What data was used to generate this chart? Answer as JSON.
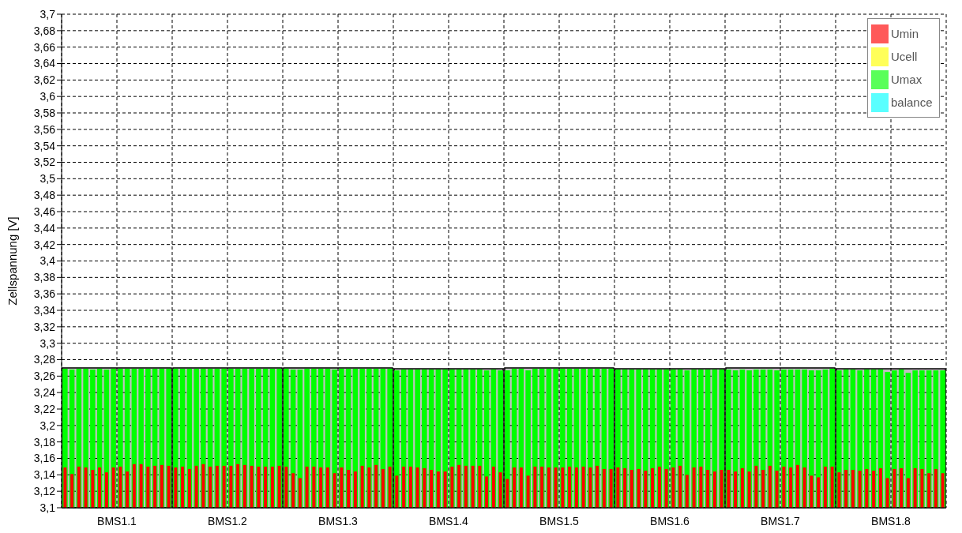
{
  "chart_data": {
    "type": "bar",
    "ylabel": "Zellspannung [V]",
    "categories": [
      null,
      null,
      null,
      null,
      null,
      null,
      null,
      "BMS1.1",
      null,
      null,
      null,
      null,
      null,
      null,
      null,
      null,
      null,
      null,
      null,
      null,
      null,
      null,
      null,
      "BMS1.2",
      null,
      null,
      null,
      null,
      null,
      null,
      null,
      null,
      null,
      null,
      null,
      null,
      null,
      null,
      null,
      "BMS1.3",
      null,
      null,
      null,
      null,
      null,
      null,
      null,
      null,
      null,
      null,
      null,
      null,
      null,
      null,
      null,
      "BMS1.4",
      null,
      null,
      null,
      null,
      null,
      null,
      null,
      null,
      null,
      null,
      null,
      null,
      null,
      null,
      null,
      "BMS1.5",
      null,
      null,
      null,
      null,
      null,
      null,
      null,
      null,
      null,
      null,
      null,
      null,
      null,
      null,
      null,
      "BMS1.6",
      null,
      null,
      null,
      null,
      null,
      null,
      null,
      null,
      null,
      null,
      null,
      null,
      null,
      null,
      null,
      "BMS1.7",
      null,
      null,
      null,
      null,
      null,
      null,
      null,
      null,
      null,
      null,
      null,
      null,
      null,
      null,
      null,
      "BMS1.8",
      null,
      null,
      null,
      null,
      null,
      null,
      null,
      null
    ],
    "series": [
      {
        "name": "Umin",
        "color": "#ff0000",
        "values": [
          3.149,
          3.141,
          3.15,
          3.149,
          3.146,
          3.149,
          3.143,
          3.149,
          3.15,
          3.144,
          3.153,
          3.153,
          3.15,
          3.151,
          3.152,
          3.151,
          3.149,
          3.15,
          3.147,
          3.151,
          3.153,
          3.15,
          3.151,
          3.151,
          3.151,
          3.153,
          3.152,
          3.151,
          3.15,
          3.15,
          3.15,
          3.151,
          3.15,
          3.142,
          3.136,
          3.15,
          3.15,
          3.149,
          3.149,
          3.142,
          3.149,
          3.146,
          3.144,
          3.151,
          3.149,
          3.152,
          3.147,
          3.15,
          3.139,
          3.15,
          3.15,
          3.149,
          3.148,
          3.146,
          3.144,
          3.144,
          3.15,
          3.152,
          3.151,
          3.151,
          3.151,
          3.138,
          3.15,
          3.143,
          3.135,
          3.149,
          3.149,
          3.139,
          3.15,
          3.15,
          3.149,
          3.149,
          3.149,
          3.15,
          3.149,
          3.15,
          3.149,
          3.151,
          3.147,
          3.147,
          3.149,
          3.148,
          3.146,
          3.147,
          3.145,
          3.148,
          3.15,
          3.147,
          3.149,
          3.151,
          3.14,
          3.149,
          3.15,
          3.146,
          3.144,
          3.146,
          3.146,
          3.144,
          3.148,
          3.144,
          3.151,
          3.146,
          3.151,
          3.145,
          3.15,
          3.149,
          3.152,
          3.149,
          3.139,
          3.137,
          3.15,
          3.15,
          3.143,
          3.146,
          3.146,
          3.145,
          3.147,
          3.145,
          3.148,
          3.136,
          3.147,
          3.148,
          3.136,
          3.148,
          3.147,
          3.142,
          3.147,
          3.142
        ]
      },
      {
        "name": "Ucell",
        "color": "#ffff00",
        "values": [
          null,
          null,
          null,
          null,
          null,
          null,
          null,
          null,
          null,
          null,
          null,
          null,
          null,
          null,
          null,
          null,
          null,
          null,
          null,
          null,
          null,
          null,
          null,
          null,
          null,
          null,
          null,
          null,
          null,
          null,
          null,
          null,
          null,
          null,
          null,
          null,
          null,
          null,
          null,
          null,
          null,
          null,
          null,
          null,
          null,
          null,
          null,
          null,
          null,
          null,
          null,
          null,
          null,
          null,
          null,
          null,
          null,
          null,
          null,
          null,
          null,
          null,
          null,
          null,
          null,
          null,
          null,
          null,
          null,
          null,
          null,
          null,
          null,
          null,
          null,
          null,
          null,
          null,
          null,
          null,
          null,
          null,
          null,
          null,
          null,
          null,
          null,
          null,
          null,
          null,
          null,
          null,
          null,
          null,
          null,
          null,
          null,
          null,
          null,
          null,
          null,
          null,
          null,
          null,
          null,
          null,
          null,
          null,
          null,
          null,
          null,
          null,
          null,
          null,
          null,
          null,
          null,
          null,
          null,
          null,
          null,
          null,
          null,
          null,
          null,
          null,
          null,
          null
        ]
      },
      {
        "name": "Umax",
        "color": "#00ff00",
        "values": [
          3.269,
          3.268,
          3.269,
          3.269,
          3.268,
          3.269,
          3.268,
          3.269,
          3.269,
          3.269,
          3.269,
          3.269,
          3.269,
          3.269,
          3.269,
          3.269,
          3.269,
          3.269,
          3.269,
          3.269,
          3.269,
          3.269,
          3.269,
          3.269,
          3.269,
          3.269,
          3.269,
          3.269,
          3.269,
          3.269,
          3.269,
          3.269,
          3.269,
          3.268,
          3.268,
          3.269,
          3.269,
          3.269,
          3.269,
          3.268,
          3.269,
          3.269,
          3.269,
          3.269,
          3.269,
          3.269,
          3.269,
          3.269,
          3.267,
          3.268,
          3.268,
          3.268,
          3.268,
          3.268,
          3.268,
          3.268,
          3.268,
          3.268,
          3.268,
          3.268,
          3.268,
          3.267,
          3.268,
          3.267,
          3.267,
          3.269,
          3.269,
          3.267,
          3.269,
          3.269,
          3.269,
          3.269,
          3.269,
          3.269,
          3.269,
          3.269,
          3.269,
          3.269,
          3.269,
          3.269,
          3.268,
          3.268,
          3.268,
          3.268,
          3.268,
          3.268,
          3.268,
          3.268,
          3.268,
          3.268,
          3.267,
          3.268,
          3.268,
          3.268,
          3.268,
          3.268,
          3.268,
          3.267,
          3.268,
          3.267,
          3.268,
          3.268,
          3.268,
          3.267,
          3.268,
          3.268,
          3.268,
          3.268,
          3.267,
          3.267,
          3.268,
          3.269,
          3.267,
          3.268,
          3.268,
          3.267,
          3.268,
          3.268,
          3.268,
          3.265,
          3.267,
          3.268,
          3.264,
          3.267,
          3.267,
          3.267,
          3.267,
          3.267
        ]
      },
      {
        "name": "balance",
        "color": "#00ffff",
        "values": [
          null,
          null,
          null,
          null,
          null,
          null,
          null,
          null,
          null,
          null,
          null,
          null,
          null,
          null,
          null,
          null,
          null,
          null,
          null,
          null,
          null,
          null,
          null,
          null,
          null,
          null,
          null,
          null,
          null,
          null,
          null,
          null,
          null,
          null,
          null,
          null,
          null,
          null,
          null,
          null,
          null,
          null,
          null,
          null,
          null,
          null,
          null,
          null,
          null,
          null,
          null,
          null,
          null,
          null,
          null,
          null,
          null,
          null,
          null,
          null,
          null,
          null,
          null,
          null,
          null,
          null,
          null,
          null,
          null,
          null,
          null,
          null,
          null,
          null,
          null,
          null,
          null,
          null,
          null,
          null,
          null,
          null,
          null,
          null,
          null,
          null,
          null,
          null,
          null,
          null,
          null,
          null,
          null,
          null,
          null,
          null,
          null,
          null,
          null,
          null,
          null,
          null,
          null,
          null,
          null,
          null,
          null,
          null,
          null,
          null,
          null,
          null,
          null,
          null,
          null,
          null,
          null,
          null,
          null,
          null,
          null,
          null,
          null,
          null,
          null,
          null,
          null,
          null
        ]
      }
    ],
    "ylim": [
      3.1,
      3.7
    ],
    "yticks": [
      {
        "value": 3.1,
        "label": "3,1"
      },
      {
        "value": 3.12,
        "label": "3,12"
      },
      {
        "value": 3.14,
        "label": "3,14"
      },
      {
        "value": 3.16,
        "label": "3,16"
      },
      {
        "value": 3.18,
        "label": "3,18"
      },
      {
        "value": 3.2,
        "label": "3,2"
      },
      {
        "value": 3.22,
        "label": "3,22"
      },
      {
        "value": 3.24,
        "label": "3,24"
      },
      {
        "value": 3.26,
        "label": "3,26"
      },
      {
        "value": 3.28,
        "label": "3,28"
      },
      {
        "value": 3.3,
        "label": "3,3"
      },
      {
        "value": 3.32,
        "label": "3,32"
      },
      {
        "value": 3.34,
        "label": "3,34"
      },
      {
        "value": 3.36,
        "label": "3,36"
      },
      {
        "value": 3.38,
        "label": "3,38"
      },
      {
        "value": 3.4,
        "label": "3,4"
      },
      {
        "value": 3.42,
        "label": "3,42"
      },
      {
        "value": 3.44,
        "label": "3,44"
      },
      {
        "value": 3.46,
        "label": "3,46"
      },
      {
        "value": 3.48,
        "label": "3,48"
      },
      {
        "value": 3.5,
        "label": "3,5"
      },
      {
        "value": 3.52,
        "label": "3,52"
      },
      {
        "value": 3.54,
        "label": "3,54"
      },
      {
        "value": 3.56,
        "label": "3,56"
      },
      {
        "value": 3.58,
        "label": "3,58"
      },
      {
        "value": 3.6,
        "label": "3,6"
      },
      {
        "value": 3.62,
        "label": "3,62"
      },
      {
        "value": 3.64,
        "label": "3,64"
      },
      {
        "value": 3.66,
        "label": "3,66"
      },
      {
        "value": 3.68,
        "label": "3,68"
      },
      {
        "value": 3.7,
        "label": "3,7"
      }
    ],
    "grid": true,
    "legend": "top right"
  }
}
